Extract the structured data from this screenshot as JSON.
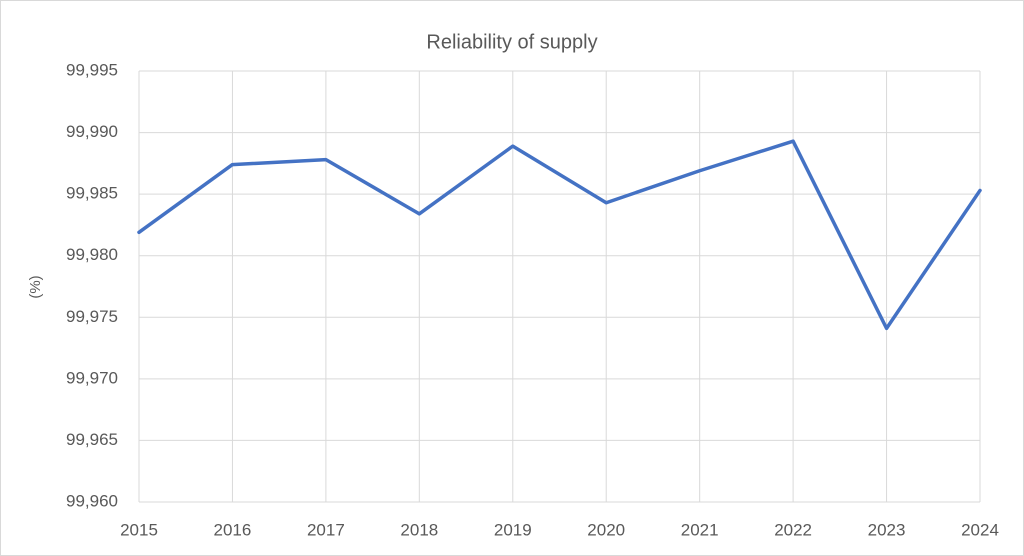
{
  "chart_data": {
    "type": "line",
    "title": "Reliability of supply",
    "y_label": "(%)",
    "x": [
      2015,
      2016,
      2017,
      2018,
      2019,
      2020,
      2021,
      2022,
      2023,
      2024
    ],
    "series": [
      {
        "name": "Reliability of supply",
        "color": "#4472c4",
        "values": [
          99.9819,
          99.9874,
          99.9878,
          99.9834,
          99.9889,
          99.9843,
          99.9869,
          99.9893,
          99.9741,
          99.9853
        ]
      }
    ],
    "xlim": [
      2015,
      2024
    ],
    "xticks": [
      2015,
      2016,
      2017,
      2018,
      2019,
      2020,
      2021,
      2022,
      2023,
      2024
    ],
    "ylim": [
      99.96,
      99.995
    ],
    "yticks": [
      {
        "value": 99.96,
        "label": "99,960"
      },
      {
        "value": 99.965,
        "label": "99,965"
      },
      {
        "value": 99.97,
        "label": "99,970"
      },
      {
        "value": 99.975,
        "label": "99,975"
      },
      {
        "value": 99.98,
        "label": "99,980"
      },
      {
        "value": 99.985,
        "label": "99,985"
      },
      {
        "value": 99.99,
        "label": "99,990"
      },
      {
        "value": 99.995,
        "label": "99,995"
      }
    ],
    "grid": true
  }
}
